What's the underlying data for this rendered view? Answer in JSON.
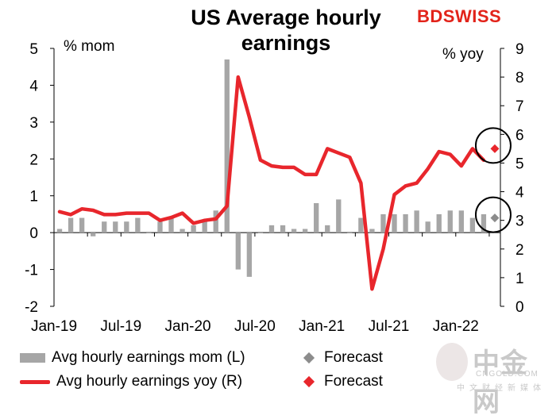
{
  "chart_data": {
    "type": "bar+line",
    "title": "US Average hourly earnings",
    "brand": {
      "part1": "BD",
      "part2": "SWISS"
    },
    "left_axis": {
      "label": "% mom",
      "min": -2,
      "max": 5,
      "ticks": [
        "5",
        "4",
        "3",
        "2",
        "1",
        "0",
        "-1",
        "-2"
      ]
    },
    "right_axis": {
      "label": "% yoy",
      "min": 0,
      "max": 9,
      "ticks": [
        "9",
        "8",
        "7",
        "6",
        "5",
        "4",
        "3",
        "2",
        "1",
        "0"
      ]
    },
    "x_tick_labels": [
      {
        "label": "Jan-19",
        "index": 0
      },
      {
        "label": "Jul-19",
        "index": 6
      },
      {
        "label": "Jan-20",
        "index": 12
      },
      {
        "label": "Jul-20",
        "index": 18
      },
      {
        "label": "Jan-21",
        "index": 24
      },
      {
        "label": "Jul-21",
        "index": 30
      },
      {
        "label": "Jan-22",
        "index": 36
      }
    ],
    "months": [
      "Jan-19",
      "Feb-19",
      "Mar-19",
      "Apr-19",
      "May-19",
      "Jun-19",
      "Jul-19",
      "Aug-19",
      "Sep-19",
      "Oct-19",
      "Nov-19",
      "Dec-19",
      "Jan-20",
      "Feb-20",
      "Mar-20",
      "Apr-20",
      "May-20",
      "Jun-20",
      "Jul-20",
      "Aug-20",
      "Sep-20",
      "Oct-20",
      "Nov-20",
      "Dec-20",
      "Jan-21",
      "Feb-21",
      "Mar-21",
      "Apr-21",
      "May-21",
      "Jun-21",
      "Jul-21",
      "Aug-21",
      "Sep-21",
      "Oct-21",
      "Nov-21",
      "Dec-21",
      "Jan-22",
      "Feb-22",
      "Mar-22",
      "Apr-22"
    ],
    "series": [
      {
        "name": "Avg hourly earnings mom (L)",
        "axis": "left",
        "kind": "bar",
        "color": "#a6a6a6",
        "values": [
          0.1,
          0.4,
          0.4,
          -0.1,
          0.3,
          0.3,
          0.3,
          0.4,
          0.0,
          0.3,
          0.4,
          0.1,
          0.2,
          0.3,
          0.6,
          4.7,
          -1.0,
          -1.2,
          0.0,
          0.2,
          0.2,
          0.1,
          0.1,
          0.8,
          0.2,
          0.9,
          0.0,
          0.4,
          0.1,
          0.5,
          0.5,
          0.5,
          0.6,
          0.3,
          0.5,
          0.6,
          0.6,
          0.4,
          0.5,
          0.6
        ]
      },
      {
        "name": "Avg hourly earnings yoy (R)",
        "axis": "right",
        "kind": "line",
        "color": "#e8262c",
        "values": [
          3.3,
          3.2,
          3.4,
          3.35,
          3.2,
          3.2,
          3.25,
          3.25,
          3.25,
          3.0,
          3.1,
          3.25,
          2.9,
          3.0,
          3.05,
          3.5,
          8.0,
          6.6,
          5.1,
          4.9,
          4.85,
          4.85,
          4.6,
          4.6,
          5.5,
          5.35,
          5.2,
          4.3,
          0.6,
          2.0,
          3.9,
          4.2,
          4.3,
          4.8,
          5.4,
          5.3,
          4.9,
          5.5,
          5.1
        ]
      }
    ],
    "forecasts": [
      {
        "name": "Forecast",
        "axis": "left",
        "index": 39,
        "value": 0.4,
        "color": "#a6a6a6"
      },
      {
        "name": "Forecast",
        "axis": "right",
        "index": 39,
        "value": 5.5,
        "color": "#e8262c"
      }
    ],
    "legend": [
      {
        "label": "Avg hourly earnings mom (L)",
        "kind": "bar"
      },
      {
        "label": "Forecast",
        "kind": "diamond-grey"
      },
      {
        "label": "Avg hourly earnings yoy (R)",
        "kind": "line"
      },
      {
        "label": "Forecast",
        "kind": "diamond-red"
      }
    ],
    "legend_position": "bottom",
    "annotations": "circles around forecast points"
  },
  "watermark": {
    "text": "中金网",
    "sub": "CNGOLD.COM",
    "sub2": "中文财经新媒体"
  }
}
